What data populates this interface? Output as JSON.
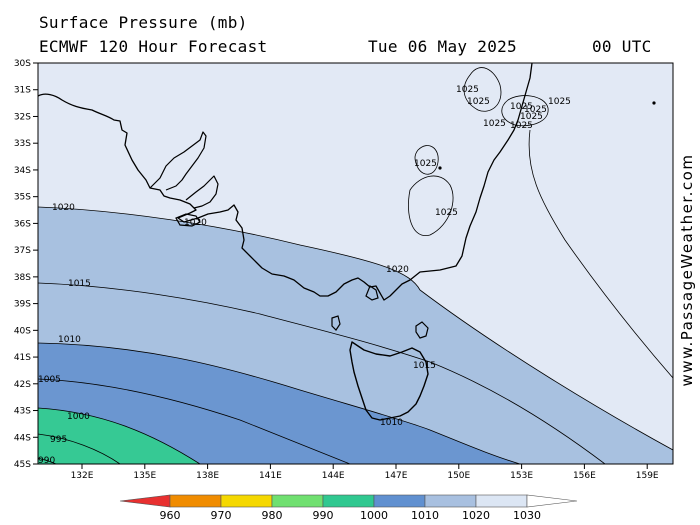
{
  "header": {
    "title": "Surface Pressure (mb)",
    "model": "ECMWF 120 Hour Forecast",
    "date": "Tue 06 May 2025",
    "time": "00 UTC"
  },
  "watermark": "www.PassageWeather.com",
  "axes": {
    "lat_labels": [
      "30S",
      "31S",
      "32S",
      "33S",
      "34S",
      "35S",
      "36S",
      "37S",
      "38S",
      "39S",
      "40S",
      "41S",
      "42S",
      "43S",
      "44S",
      "45S"
    ],
    "lon_labels": [
      "132E",
      "135E",
      "138E",
      "141E",
      "144E",
      "147E",
      "150E",
      "153E",
      "156E",
      "159E"
    ]
  },
  "colorbar": {
    "labels": [
      "960",
      "970",
      "980",
      "990",
      "1000",
      "1010",
      "1020",
      "1030"
    ],
    "colors": [
      "#e83030",
      "#f08c00",
      "#f5d800",
      "#70e070",
      "#30c890",
      "#6090d0",
      "#a8c0e0",
      "#dce6f4",
      "#ffffff"
    ]
  },
  "fill_colors": {
    "above_1020": "#e2e9f5",
    "r1010_1020": "#a8c1e0",
    "r1000_1010": "#6b96d0",
    "r990_1000": "#36c994",
    "land_line": "#000000"
  },
  "isobar_labels": {
    "l1020a": "1020",
    "l1020b": "1020",
    "l1020c": "1020",
    "l1015a": "1015",
    "l1015b": "1015",
    "l1010a": "1010",
    "l1010b": "1010",
    "l1005": "1005",
    "l1000": "1000",
    "l995": "995",
    "l990": "990",
    "l1025a": "1025",
    "l1025b": "1025",
    "l1025c": "1025",
    "l1025d": "1025",
    "l1025e": "1025",
    "l1025f": "1025",
    "l1025g": "1025",
    "l1025h": "1025",
    "l1025i": "1025",
    "l1025j": "1025"
  }
}
